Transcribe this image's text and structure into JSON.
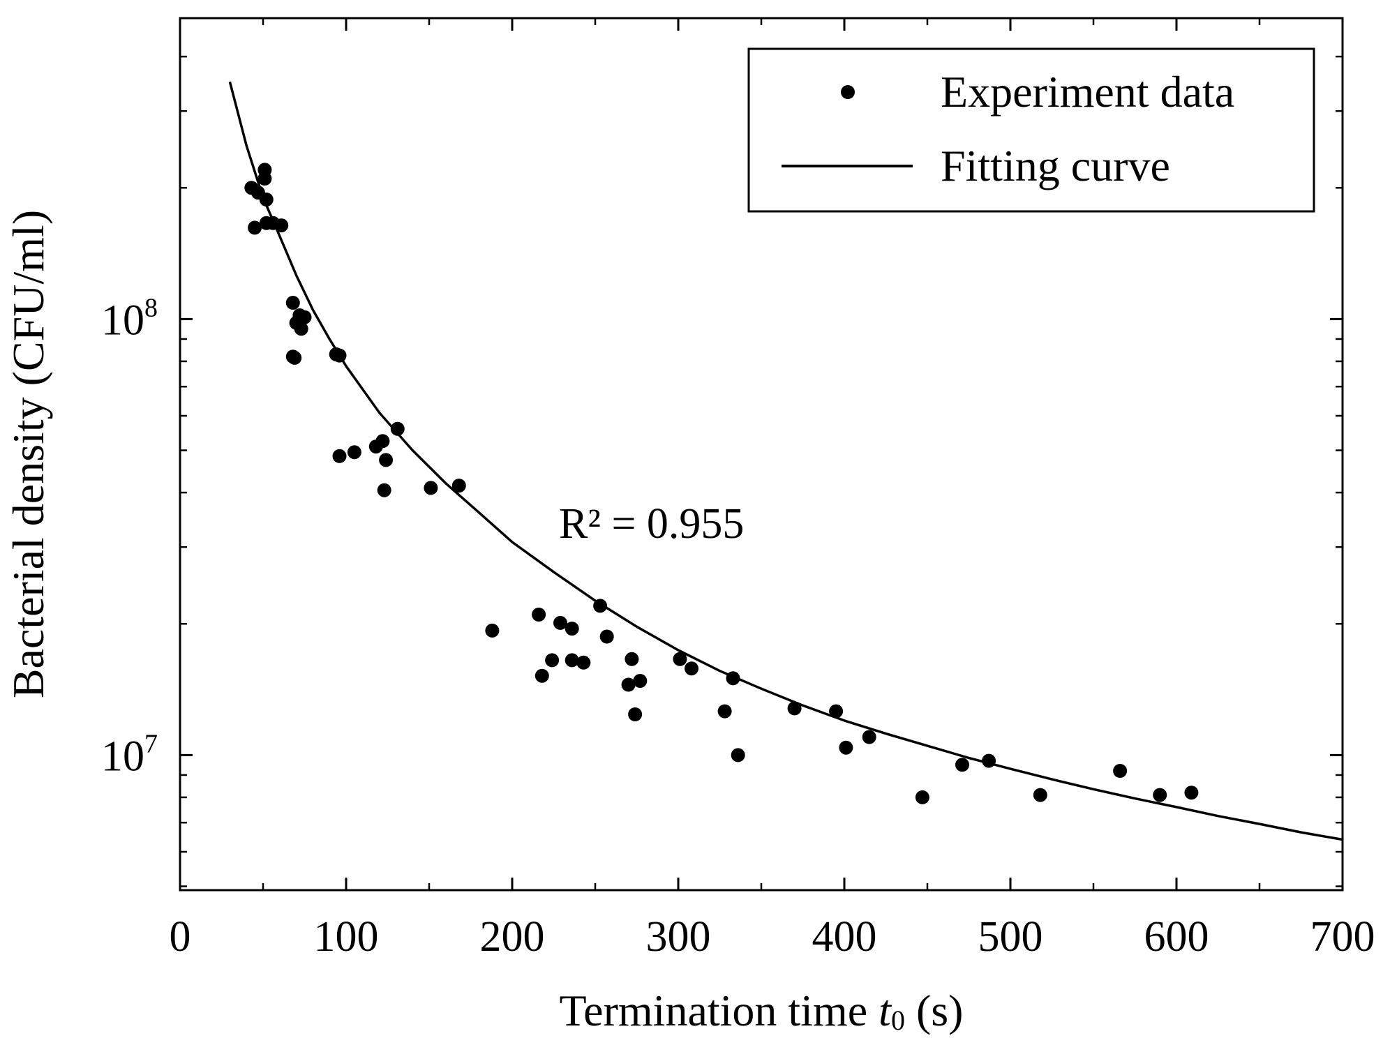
{
  "chart_data": {
    "type": "scatter",
    "title": "",
    "xlabel": "Termination time",
    "xlabel_var": "t",
    "xlabel_sub": "0",
    "xlabel_unit": "(s)",
    "ylabel": "Bacterial density (CFU/ml)",
    "xlim": [
      0,
      700
    ],
    "ylim": [
      4900000.0,
      490000000.0
    ],
    "yscale": "log",
    "x_ticks": [
      0,
      100,
      200,
      300,
      400,
      500,
      600,
      700
    ],
    "x_tick_labels": [
      "0",
      "100",
      "200",
      "300",
      "400",
      "500",
      "600",
      "700"
    ],
    "y_ticks": [
      {
        "base": "10",
        "exp": "7",
        "value": 10000000.0
      },
      {
        "base": "10",
        "exp": "8",
        "value": 100000000.0
      }
    ],
    "annotation": {
      "text": "R² = 0.955",
      "x": 228,
      "y": 32500000.0
    },
    "legend": {
      "position": "top-right",
      "entries": [
        {
          "label": "Experiment data",
          "marker": "dot"
        },
        {
          "label": "Fitting curve",
          "marker": "line"
        }
      ]
    },
    "series": [
      {
        "name": "Experiment data",
        "type": "scatter",
        "points": [
          [
            43,
            200000000.0
          ],
          [
            47,
            195000000.0
          ],
          [
            51,
            220000000.0
          ],
          [
            51,
            210000000.0
          ],
          [
            52,
            188000000.0
          ],
          [
            45,
            162000000.0
          ],
          [
            52,
            166000000.0
          ],
          [
            56,
            166000000.0
          ],
          [
            61,
            164000000.0
          ],
          [
            68,
            109000000.0
          ],
          [
            70,
            98000000.0
          ],
          [
            73,
            95000000.0
          ],
          [
            75,
            101000000.0
          ],
          [
            72,
            102000000.0
          ],
          [
            68,
            82000000.0
          ],
          [
            69,
            81500000.0
          ],
          [
            94,
            83000000.0
          ],
          [
            96,
            82500000.0
          ],
          [
            96,
            48500000.0
          ],
          [
            105,
            49500000.0
          ],
          [
            118,
            51000000.0
          ],
          [
            122,
            52500000.0
          ],
          [
            124,
            47500000.0
          ],
          [
            131,
            56000000.0
          ],
          [
            123,
            40500000.0
          ],
          [
            151,
            41000000.0
          ],
          [
            168,
            41500000.0
          ],
          [
            188,
            19300000.0
          ],
          [
            216,
            21000000.0
          ],
          [
            218,
            15200000.0
          ],
          [
            224,
            16500000.0
          ],
          [
            229,
            20100000.0
          ],
          [
            236,
            19500000.0
          ],
          [
            236,
            16500000.0
          ],
          [
            243,
            16300000.0
          ],
          [
            253,
            22000000.0
          ],
          [
            257,
            18700000.0
          ],
          [
            270,
            14500000.0
          ],
          [
            272,
            16600000.0
          ],
          [
            274,
            12400000.0
          ],
          [
            277,
            14800000.0
          ],
          [
            301,
            16600000.0
          ],
          [
            308,
            15800000.0
          ],
          [
            328,
            12600000.0
          ],
          [
            333,
            15000000.0
          ],
          [
            336,
            10000000.0
          ],
          [
            370,
            12800000.0
          ],
          [
            395,
            12600000.0
          ],
          [
            401,
            10400000.0
          ],
          [
            415,
            11000000.0
          ],
          [
            447,
            8000000.0
          ],
          [
            471,
            9500000.0
          ],
          [
            487,
            9700000.0
          ],
          [
            518,
            8100000.0
          ],
          [
            566,
            9200000.0
          ],
          [
            590,
            8100000.0
          ],
          [
            609,
            8200000.0
          ]
        ]
      },
      {
        "name": "Fitting curve",
        "type": "line",
        "points": [
          [
            30,
            350000000.0
          ],
          [
            40,
            250000000.0
          ],
          [
            50,
            190000000.0
          ],
          [
            60,
            155000000.0
          ],
          [
            70,
            126000000.0
          ],
          [
            80,
            105000000.0
          ],
          [
            90,
            90000000.0
          ],
          [
            100,
            78000000.0
          ],
          [
            120,
            61000000.0
          ],
          [
            140,
            50000000.0
          ],
          [
            160,
            42000000.0
          ],
          [
            180,
            36000000.0
          ],
          [
            200,
            30800000.0
          ],
          [
            225,
            26300000.0
          ],
          [
            250,
            22600000.0
          ],
          [
            275,
            19700000.0
          ],
          [
            300,
            17400000.0
          ],
          [
            325,
            15600000.0
          ],
          [
            350,
            14200000.0
          ],
          [
            375,
            13000000.0
          ],
          [
            400,
            12000000.0
          ],
          [
            425,
            11200000.0
          ],
          [
            450,
            10500000.0
          ],
          [
            475,
            9850000.0
          ],
          [
            500,
            9300000.0
          ],
          [
            525,
            8800000.0
          ],
          [
            550,
            8350000.0
          ],
          [
            575,
            7950000.0
          ],
          [
            600,
            7600000.0
          ],
          [
            625,
            7250000.0
          ],
          [
            650,
            6950000.0
          ],
          [
            675,
            6650000.0
          ],
          [
            700,
            6400000.0
          ]
        ]
      }
    ]
  }
}
